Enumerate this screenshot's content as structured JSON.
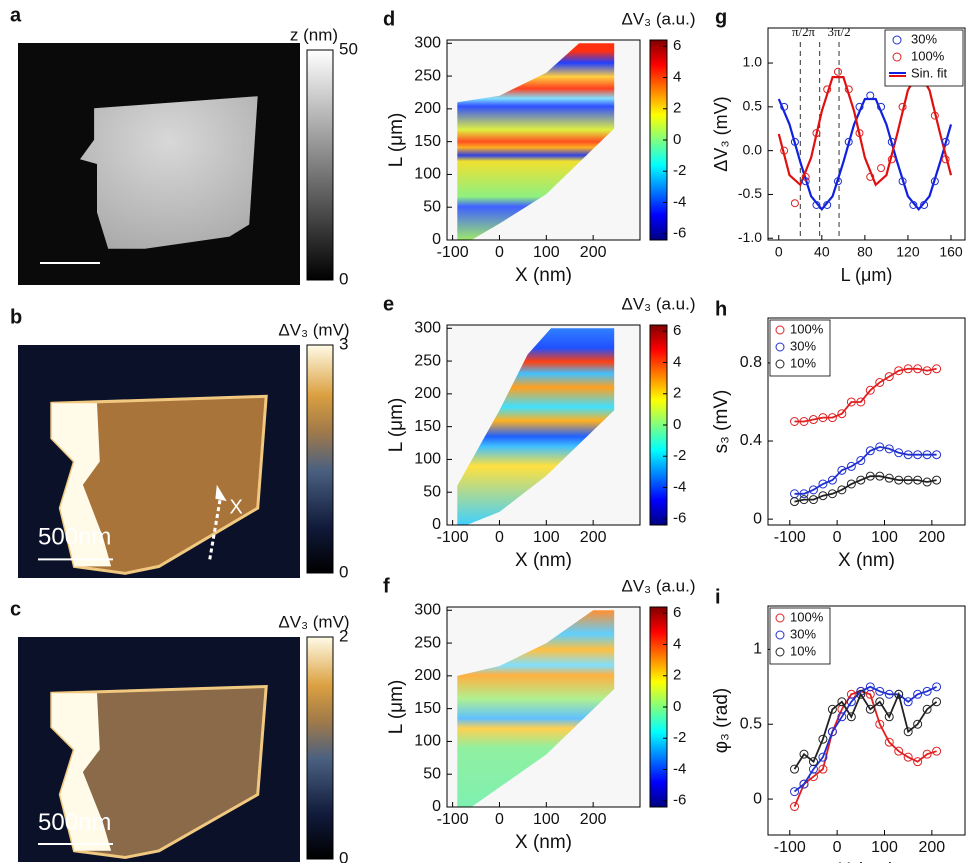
{
  "chart_data": [
    {
      "type": "image",
      "panel": "a",
      "colormap": "gray",
      "colorbar_title": "z (nm)",
      "clim": [
        0,
        50
      ],
      "cticks": [
        0,
        50
      ]
    },
    {
      "type": "image",
      "panel": "b",
      "colormap": "dark-orange",
      "colorbar_title": "ΔV₃ (mV)",
      "clim": [
        0,
        3
      ],
      "cticks": [
        0,
        3
      ],
      "annotations": [
        "500nm",
        "X"
      ]
    },
    {
      "type": "image",
      "panel": "c",
      "colormap": "dark-orange",
      "colorbar_title": "ΔV₃ (mV)",
      "clim": [
        0,
        2
      ],
      "cticks": [
        0,
        2
      ],
      "annotations": [
        "500nm"
      ]
    },
    {
      "type": "heatmap",
      "panel": "d",
      "xlabel": "X (nm)",
      "ylabel": "L (μm)",
      "xlim": [
        -112,
        300
      ],
      "ylim": [
        0,
        305
      ],
      "xticks": [
        -100,
        0,
        100,
        200
      ],
      "yticks": [
        0,
        50,
        100,
        150,
        200,
        250,
        300
      ],
      "colorbar_title": "ΔV₃ (a.u.)",
      "colormap": "jet",
      "clim": [
        -6.4,
        6.4
      ],
      "cticks": [
        -6,
        -4,
        -2,
        0,
        2,
        4,
        6
      ]
    },
    {
      "type": "heatmap",
      "panel": "e",
      "xlabel": "X (nm)",
      "ylabel": "L (μm)",
      "xlim": [
        -112,
        300
      ],
      "ylim": [
        0,
        305
      ],
      "xticks": [
        -100,
        0,
        100,
        200
      ],
      "yticks": [
        0,
        50,
        100,
        150,
        200,
        250,
        300
      ],
      "colorbar_title": "ΔV₃ (a.u.)",
      "colormap": "jet",
      "clim": [
        -6.4,
        6.4
      ],
      "cticks": [
        -6,
        -4,
        -2,
        0,
        2,
        4,
        6
      ]
    },
    {
      "type": "heatmap",
      "panel": "f",
      "xlabel": "X (nm)",
      "ylabel": "L (μm)",
      "xlim": [
        -112,
        300
      ],
      "ylim": [
        0,
        305
      ],
      "xticks": [
        -100,
        0,
        100,
        200
      ],
      "yticks": [
        0,
        50,
        100,
        150,
        200,
        250,
        300
      ],
      "colorbar_title": "ΔV₃ (a.u.)",
      "colormap": "jet",
      "clim": [
        -6.4,
        6.4
      ],
      "cticks": [
        -6,
        -4,
        -2,
        0,
        2,
        4,
        6
      ]
    },
    {
      "type": "scatter",
      "panel": "g",
      "xlabel": "L (μm)",
      "ylabel": "ΔV₃ (mV)",
      "xlim": [
        -10,
        173
      ],
      "ylim": [
        -1.02,
        1.4
      ],
      "xticks": [
        0,
        40,
        80,
        120,
        160
      ],
      "yticks": [
        {
          "value": -1,
          "label": "-1.0"
        },
        -0.5,
        {
          "value": 0,
          "label": "0.0"
        },
        0.5,
        {
          "value": 1,
          "label": "1.0"
        }
      ],
      "legend": "upper right",
      "x": [
        5,
        15,
        25,
        35,
        45,
        55,
        65,
        75,
        85,
        95,
        105,
        115,
        125,
        135,
        145,
        155
      ],
      "series": [
        {
          "name": "30%",
          "color": "#2030d0",
          "values": [
            0.5,
            0.1,
            -0.35,
            -0.62,
            -0.62,
            -0.35,
            0.1,
            0.5,
            0.63,
            0.5,
            0.1,
            -0.35,
            -0.62,
            -0.62,
            -0.35,
            0.1
          ]
        },
        {
          "name": "100%",
          "color": "#e02020",
          "values": [
            0.0,
            -0.6,
            -0.3,
            0.2,
            0.7,
            0.9,
            0.7,
            0.2,
            -0.3,
            -0.2,
            -0.1,
            0.5,
            0.8,
            0.85,
            0.4,
            -0.1
          ]
        }
      ],
      "fit": {
        "name": "Sin. fit",
        "x": [
          0,
          10,
          20,
          30,
          40,
          50,
          60,
          70,
          80,
          90,
          100,
          110,
          120,
          130,
          140,
          150,
          160
        ],
        "lines": [
          {
            "color": "#1020e0",
            "values": [
              0.59,
              0.3,
              -0.13,
              -0.52,
              -0.67,
              -0.52,
              -0.13,
              0.3,
              0.59,
              0.59,
              0.3,
              -0.13,
              -0.52,
              -0.67,
              -0.52,
              -0.13,
              0.3
            ]
          },
          {
            "color": "#e01010",
            "values": [
              0.19,
              -0.28,
              -0.39,
              -0.08,
              0.45,
              0.84,
              0.84,
              0.45,
              -0.08,
              -0.39,
              -0.28,
              0.19,
              0.69,
              0.9,
              0.69,
              0.19,
              -0.28
            ]
          }
        ]
      },
      "vlines": [
        {
          "x": 20,
          "text": "π/2"
        },
        {
          "x": 38,
          "text": "π"
        },
        {
          "x": 56,
          "text": "3π/2"
        }
      ]
    },
    {
      "type": "line",
      "panel": "h",
      "xlabel": "X (nm)",
      "ylabel": "s₃ (mV)",
      "xlim": [
        -146,
        270
      ],
      "ylim": [
        -0.03,
        1.03
      ],
      "xticks": [
        -100,
        0,
        100,
        200
      ],
      "yticks": [
        0,
        0.4,
        0.8
      ],
      "legend": "upper left",
      "x": [
        -90,
        -70,
        -50,
        -30,
        -10,
        10,
        30,
        50,
        70,
        90,
        110,
        130,
        150,
        170,
        190,
        210
      ],
      "series": [
        {
          "name": "100%",
          "color": "#e02020",
          "values": [
            0.5,
            0.5,
            0.51,
            0.52,
            0.52,
            0.54,
            0.6,
            0.6,
            0.66,
            0.7,
            0.73,
            0.76,
            0.77,
            0.77,
            0.76,
            0.77
          ]
        },
        {
          "name": "30%",
          "color": "#2030d0",
          "values": [
            0.13,
            0.13,
            0.15,
            0.18,
            0.2,
            0.25,
            0.27,
            0.3,
            0.35,
            0.37,
            0.36,
            0.34,
            0.33,
            0.33,
            0.33,
            0.33
          ]
        },
        {
          "name": "10%",
          "color": "#222222",
          "values": [
            0.09,
            0.1,
            0.1,
            0.12,
            0.13,
            0.15,
            0.18,
            0.2,
            0.22,
            0.22,
            0.21,
            0.2,
            0.2,
            0.2,
            0.19,
            0.2
          ]
        }
      ]
    },
    {
      "type": "line",
      "panel": "i",
      "xlabel": "X (nm)",
      "ylabel": "φ₃ (rad)",
      "xlim": [
        -146,
        270
      ],
      "ylim": [
        -0.24,
        1.29
      ],
      "xticks": [
        -100,
        0,
        100,
        200
      ],
      "yticks": [
        0,
        0.5,
        1
      ],
      "legend": "upper left",
      "x": [
        -90,
        -70,
        -50,
        -30,
        -10,
        10,
        30,
        50,
        70,
        90,
        110,
        130,
        150,
        170,
        190,
        210
      ],
      "series": [
        {
          "name": "100%",
          "color": "#e02020",
          "values": [
            -0.05,
            0.1,
            0.15,
            0.2,
            0.45,
            0.6,
            0.7,
            0.72,
            0.7,
            0.5,
            0.38,
            0.32,
            0.28,
            0.25,
            0.3,
            0.32
          ]
        },
        {
          "name": "30%",
          "color": "#2030d0",
          "values": [
            0.05,
            0.1,
            0.2,
            0.28,
            0.45,
            0.55,
            0.65,
            0.72,
            0.75,
            0.72,
            0.7,
            0.7,
            0.65,
            0.7,
            0.72,
            0.75
          ]
        },
        {
          "name": "10%",
          "color": "#222222",
          "values": [
            0.2,
            0.3,
            0.25,
            0.4,
            0.6,
            0.65,
            0.55,
            0.7,
            0.6,
            0.65,
            0.55,
            0.7,
            0.45,
            0.5,
            0.6,
            0.65
          ]
        }
      ]
    }
  ]
}
